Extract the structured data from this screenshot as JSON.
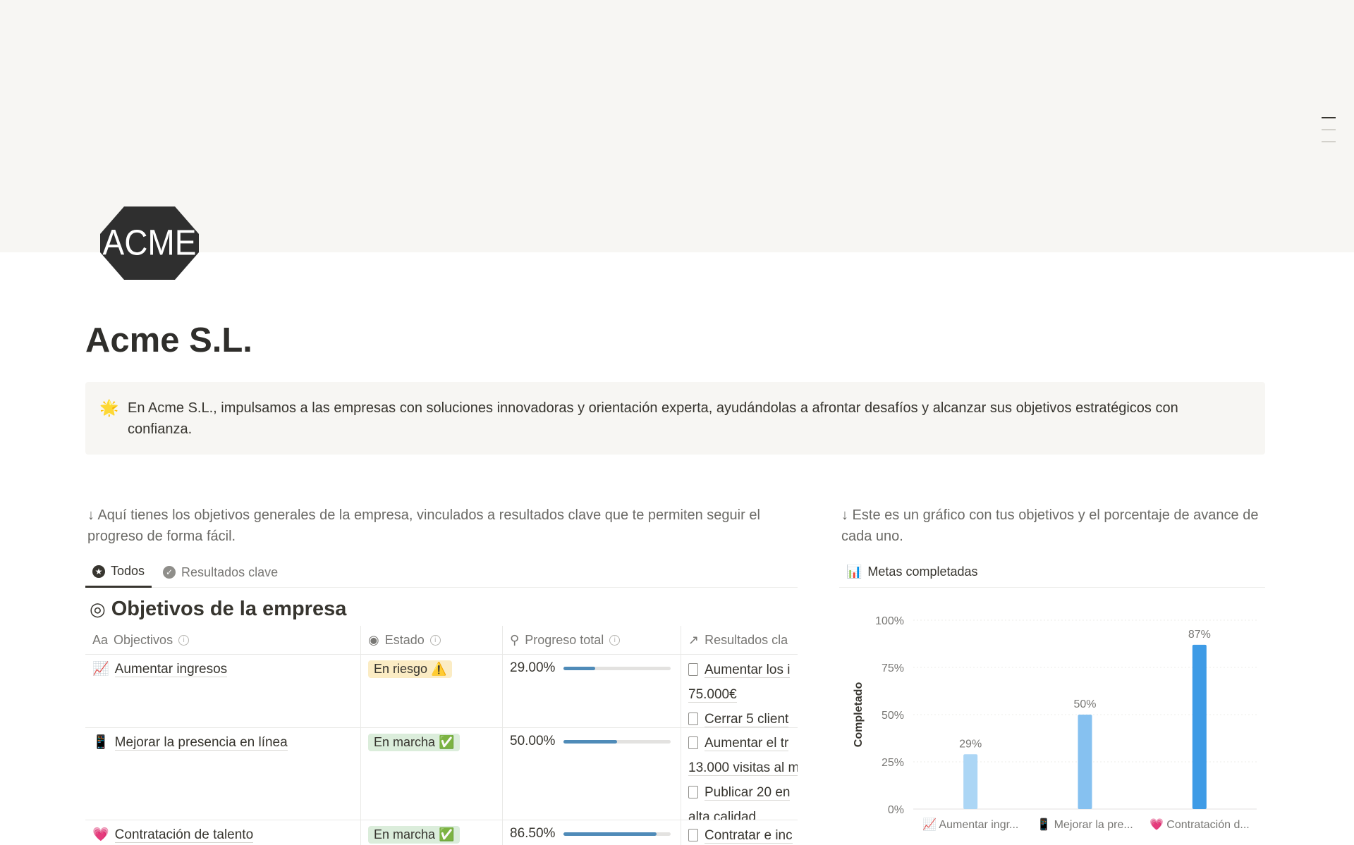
{
  "page": {
    "title": "Acme S.L.",
    "logo_text": "ACME",
    "callout": {
      "icon": "🌟",
      "text": "En Acme S.L., impulsamos a las empresas con soluciones innovadoras y orientación experta, ayudándolas a afrontar desafíos y alcanzar sus objetivos estratégicos con confianza."
    },
    "intro_left": "↓ Aquí tienes los objetivos generales de la empresa, vinculados a resultados clave que te permiten seguir el progreso de forma fácil.",
    "intro_right": "↓ Este es un gráfico con tus objetivos y el porcentaje de avance de cada uno."
  },
  "tabs": [
    {
      "label": "Todos",
      "icon": "star-circle"
    },
    {
      "label": "Resultados clave",
      "icon": "check-circle"
    }
  ],
  "database": {
    "title": "Objetivos de la empresa",
    "icon": "target-arrow",
    "columns": [
      {
        "label": "Objectivos",
        "prefix": "Aa"
      },
      {
        "label": "Estado"
      },
      {
        "label": "Progreso total"
      },
      {
        "label": "Resultados cla"
      }
    ],
    "rows": [
      {
        "emoji": "📈",
        "name": "Aumentar ingresos",
        "status": "En riesgo ⚠️",
        "status_color": "#fbecc4",
        "progress_label": "29.00%",
        "progress": 29,
        "results": [
          "Aumentar los i",
          "75.000€",
          "Cerrar 5 client"
        ]
      },
      {
        "emoji": "📱",
        "name": "Mejorar la presencia en línea",
        "status": "En marcha ✅",
        "status_color": "#dbeddb",
        "progress_label": "50.00%",
        "progress": 50,
        "results": [
          "Aumentar el tr",
          "13.000 visitas al m",
          "Publicar 20 en",
          "alta calidad"
        ]
      },
      {
        "emoji": "💗",
        "name": "Contratación de talento",
        "status": "En marcha ✅",
        "status_color": "#dbeddb",
        "progress_label": "86.50%",
        "progress": 86.5,
        "results": [
          "Contratar e inc"
        ]
      }
    ]
  },
  "chart_data": {
    "type": "bar",
    "title": "Metas completadas",
    "xlabel": "",
    "ylabel": "Completado",
    "categories": [
      "📈 Aumentar ingr...",
      "📱 Mejorar la pre...",
      "💗 Contratación d..."
    ],
    "values": [
      29,
      50,
      87
    ],
    "value_labels": [
      "29%",
      "50%",
      "87%"
    ],
    "colors": [
      "#acd6f5",
      "#86c1f0",
      "#3e9be6"
    ],
    "ylim": [
      0,
      100
    ],
    "yticks": [
      "0%",
      "25%",
      "50%",
      "75%",
      "100%"
    ],
    "grid": true
  }
}
